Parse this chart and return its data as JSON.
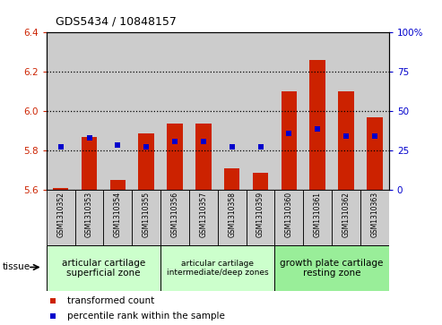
{
  "title": "GDS5434 / 10848157",
  "samples": [
    "GSM1310352",
    "GSM1310353",
    "GSM1310354",
    "GSM1310355",
    "GSM1310356",
    "GSM1310357",
    "GSM1310358",
    "GSM1310359",
    "GSM1310360",
    "GSM1310361",
    "GSM1310362",
    "GSM1310363"
  ],
  "red_values": [
    5.61,
    5.87,
    5.65,
    5.89,
    5.94,
    5.94,
    5.71,
    5.69,
    6.1,
    6.26,
    6.1,
    5.97
  ],
  "blue_values": [
    5.82,
    5.865,
    5.83,
    5.82,
    5.848,
    5.848,
    5.82,
    5.82,
    5.89,
    5.91,
    5.872,
    5.872
  ],
  "ymin": 5.6,
  "ymax": 6.4,
  "y_ticks": [
    5.6,
    5.8,
    6.0,
    6.2,
    6.4
  ],
  "y2min": 0,
  "y2max": 100,
  "y2_ticks": [
    0,
    25,
    50,
    75,
    100
  ],
  "group_configs": [
    {
      "indices": [
        0,
        1,
        2,
        3
      ],
      "label": "articular cartilage\nsuperficial zone",
      "color": "#ccffcc",
      "fontsize": 7.5
    },
    {
      "indices": [
        4,
        5,
        6,
        7
      ],
      "label": "articular cartilage\nintermediate/deep zones",
      "color": "#ccffcc",
      "fontsize": 6.5
    },
    {
      "indices": [
        8,
        9,
        10,
        11
      ],
      "label": "growth plate cartilage\nresting zone",
      "color": "#99ee99",
      "fontsize": 7.5
    }
  ],
  "bar_color": "#cc2200",
  "blue_color": "#0000cc",
  "col_bg": "#cccccc",
  "tissue_label": "tissue",
  "legend_red": "transformed count",
  "legend_blue": "percentile rank within the sample"
}
